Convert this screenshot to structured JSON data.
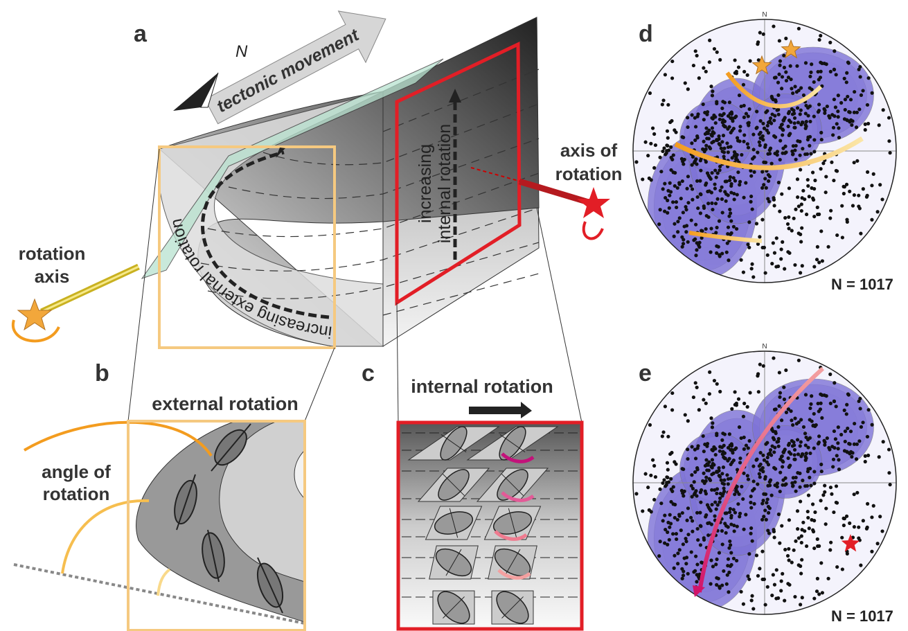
{
  "panel_a": {
    "label": "a",
    "arrow_label": "tectonic movement",
    "north": "N",
    "external_path": "increasing external rotation",
    "internal_path": [
      "increasing",
      "internal rotation"
    ],
    "left_axis": [
      "rotation",
      "axis"
    ],
    "right_axis": [
      "axis of",
      "rotation"
    ]
  },
  "panel_b": {
    "label": "b",
    "title": "external rotation",
    "angle": [
      "angle of",
      "rotation"
    ]
  },
  "panel_c": {
    "label": "c",
    "title": "internal rotation"
  },
  "panel_d": {
    "label": "d",
    "north": "N",
    "count": "N = 1017"
  },
  "panel_e": {
    "label": "e",
    "north": "N",
    "count": "N = 1017"
  }
}
